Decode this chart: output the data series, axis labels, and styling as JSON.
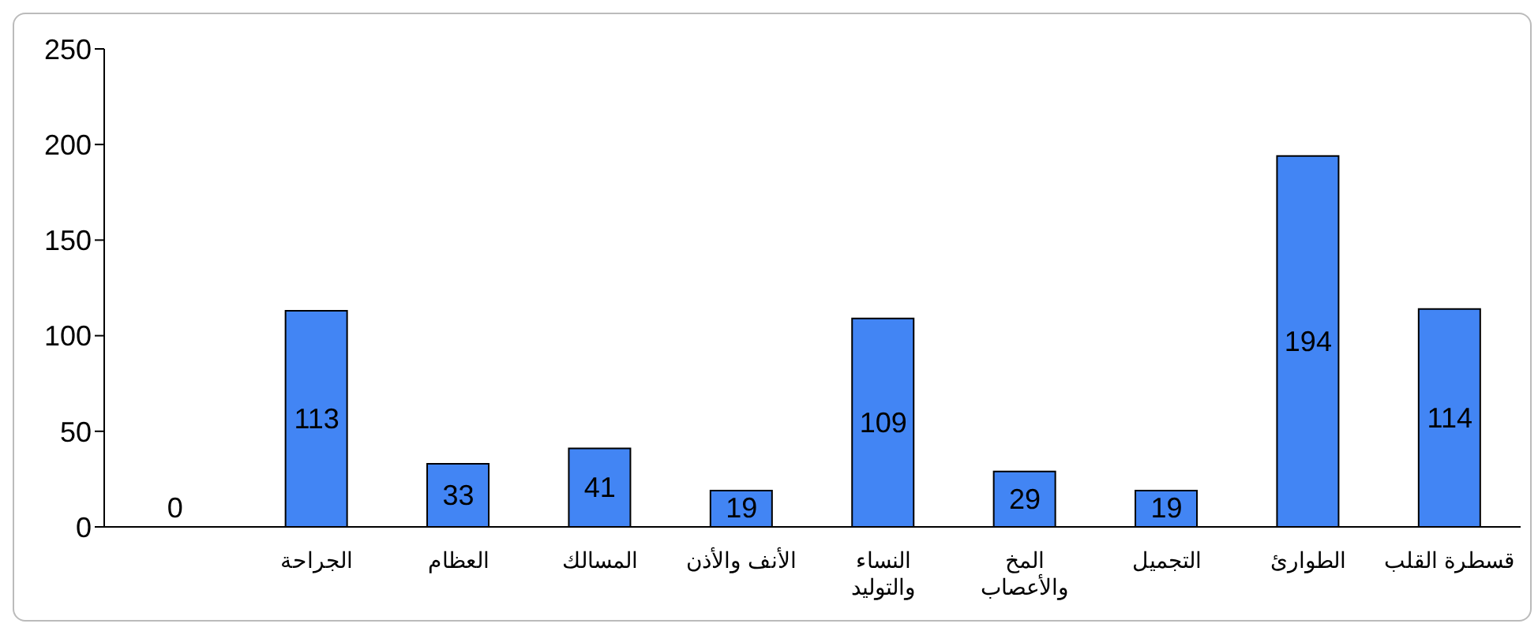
{
  "chart_data": {
    "type": "bar",
    "categories": [
      null,
      "الجراحة",
      "العظام",
      "المسالك",
      "الأنف والأذن",
      "النساء والتوليد",
      "المخ والأعصاب",
      "التجميل",
      "الطوارئ",
      "قسطرة القلب"
    ],
    "values": [
      0,
      113,
      33,
      41,
      19,
      109,
      29,
      19,
      194,
      114
    ],
    "color": "#4285f4",
    "ylim": [
      0,
      250
    ],
    "yticks": [
      0,
      50,
      100,
      150,
      200,
      250
    ],
    "grid": false,
    "data_labels": true
  }
}
